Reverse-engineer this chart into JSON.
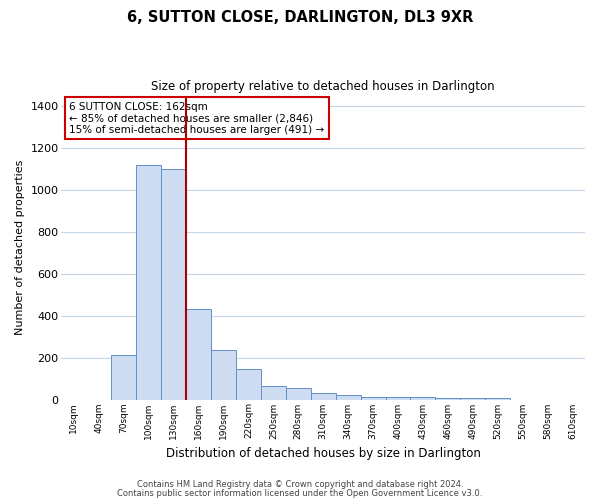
{
  "title": "6, SUTTON CLOSE, DARLINGTON, DL3 9XR",
  "subtitle": "Size of property relative to detached houses in Darlington",
  "xlabel": "Distribution of detached houses by size in Darlington",
  "ylabel": "Number of detached properties",
  "bin_labels": [
    "10sqm",
    "40sqm",
    "70sqm",
    "100sqm",
    "130sqm",
    "160sqm",
    "190sqm",
    "220sqm",
    "250sqm",
    "280sqm",
    "310sqm",
    "340sqm",
    "370sqm",
    "400sqm",
    "430sqm",
    "460sqm",
    "490sqm",
    "520sqm",
    "550sqm",
    "580sqm",
    "610sqm"
  ],
  "bar_values": [
    0,
    0,
    210,
    1120,
    1100,
    430,
    235,
    145,
    65,
    55,
    30,
    20,
    10,
    10,
    10,
    5,
    5,
    5,
    0,
    0,
    0
  ],
  "bar_color": "#cddcf0",
  "bar_edge_color": "#6090c8",
  "vline_x": 5.0,
  "vline_color": "#aa0000",
  "annotation_line1": "6 SUTTON CLOSE: 162sqm",
  "annotation_line2": "← 85% of detached houses are smaller (2,846)",
  "annotation_line3": "15% of semi-detached houses are larger (491) →",
  "ylim": [
    0,
    1450
  ],
  "yticks": [
    0,
    200,
    400,
    600,
    800,
    1000,
    1200,
    1400
  ],
  "footer1": "Contains HM Land Registry data © Crown copyright and database right 2024.",
  "footer2": "Contains public sector information licensed under the Open Government Licence v3.0.",
  "bg_color": "#ffffff",
  "grid_color": "#c8d4e8",
  "title_fontsize": 10.5,
  "subtitle_fontsize": 8.5
}
